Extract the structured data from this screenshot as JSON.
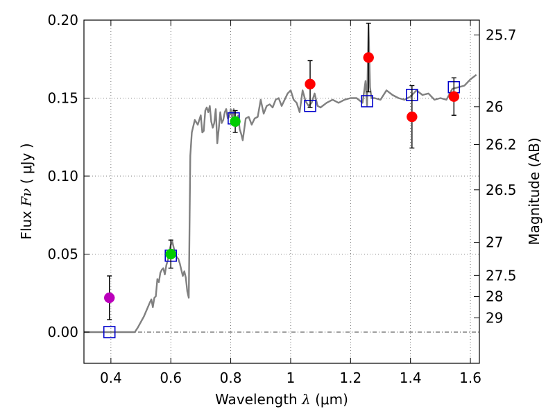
{
  "chart_data": {
    "type": "scatter",
    "xlabel": {
      "text": "Wavelength",
      "symbol": "λ",
      "unit": "(μm)"
    },
    "ylabel": {
      "text": "Flux",
      "symbol": "Fν",
      "unit": "( μJy )"
    },
    "y2label": "Magnitude (AB)",
    "xlim": [
      0.31,
      1.63
    ],
    "ylim": [
      -0.02,
      0.2
    ],
    "grid": true,
    "x_ticks": [
      {
        "value": 0.4,
        "label": "0.4"
      },
      {
        "value": 0.6,
        "label": "0.6"
      },
      {
        "value": 0.8,
        "label": "0.8"
      },
      {
        "value": 1.0,
        "label": "1"
      },
      {
        "value": 1.2,
        "label": "1.2"
      },
      {
        "value": 1.4,
        "label": "1.4"
      },
      {
        "value": 1.6,
        "label": "1.6"
      }
    ],
    "y_ticks": [
      {
        "value": 0.0,
        "label": "0.00"
      },
      {
        "value": 0.05,
        "label": "0.05"
      },
      {
        "value": 0.1,
        "label": "0.10"
      },
      {
        "value": 0.15,
        "label": "0.15"
      },
      {
        "value": 0.2,
        "label": "0.20"
      }
    ],
    "y2_ticks": [
      {
        "label": "25.7",
        "flux": 0.1905
      },
      {
        "label": "26",
        "flux": 0.1445
      },
      {
        "label": "26.2",
        "flux": 0.1202
      },
      {
        "label": "26.5",
        "flux": 0.0912
      },
      {
        "label": "27",
        "flux": 0.0575
      },
      {
        "label": "27.5",
        "flux": 0.0363
      },
      {
        "label": "28",
        "flux": 0.0229
      },
      {
        "label": "29",
        "flux": 0.0091
      }
    ],
    "series": [
      {
        "name": "model-spectrum",
        "kind": "line",
        "color": "#808080",
        "x": [
          0.31,
          0.48,
          0.49,
          0.51,
          0.53,
          0.535,
          0.54,
          0.545,
          0.55,
          0.555,
          0.56,
          0.565,
          0.57,
          0.575,
          0.58,
          0.585,
          0.59,
          0.595,
          0.6,
          0.605,
          0.61,
          0.615,
          0.62,
          0.625,
          0.63,
          0.635,
          0.64,
          0.645,
          0.65,
          0.655,
          0.66,
          0.665,
          0.67,
          0.68,
          0.69,
          0.7,
          0.705,
          0.71,
          0.715,
          0.72,
          0.725,
          0.73,
          0.735,
          0.74,
          0.745,
          0.75,
          0.755,
          0.76,
          0.765,
          0.77,
          0.775,
          0.78,
          0.785,
          0.79,
          0.795,
          0.8,
          0.805,
          0.81,
          0.815,
          0.82,
          0.825,
          0.83,
          0.835,
          0.84,
          0.85,
          0.86,
          0.87,
          0.88,
          0.89,
          0.9,
          0.91,
          0.92,
          0.93,
          0.94,
          0.95,
          0.96,
          0.97,
          0.98,
          0.99,
          1.0,
          1.01,
          1.02,
          1.03,
          1.04,
          1.05,
          1.06,
          1.07,
          1.08,
          1.09,
          1.1,
          1.12,
          1.14,
          1.16,
          1.18,
          1.2,
          1.22,
          1.24,
          1.25,
          1.255,
          1.26,
          1.265,
          1.27,
          1.28,
          1.3,
          1.32,
          1.34,
          1.36,
          1.38,
          1.4,
          1.42,
          1.44,
          1.46,
          1.48,
          1.5,
          1.52,
          1.54,
          1.56,
          1.58,
          1.6,
          1.62
        ],
        "y": [
          0.0,
          0.0,
          0.003,
          0.01,
          0.019,
          0.021,
          0.016,
          0.022,
          0.023,
          0.034,
          0.032,
          0.038,
          0.04,
          0.041,
          0.037,
          0.043,
          0.046,
          0.052,
          0.056,
          0.058,
          0.054,
          0.05,
          0.048,
          0.047,
          0.044,
          0.04,
          0.036,
          0.039,
          0.035,
          0.026,
          0.022,
          0.113,
          0.128,
          0.136,
          0.133,
          0.139,
          0.128,
          0.129,
          0.142,
          0.144,
          0.141,
          0.145,
          0.135,
          0.131,
          0.134,
          0.143,
          0.121,
          0.13,
          0.141,
          0.134,
          0.136,
          0.141,
          0.143,
          0.137,
          0.138,
          0.143,
          0.137,
          0.143,
          0.135,
          0.132,
          0.139,
          0.13,
          0.127,
          0.123,
          0.137,
          0.138,
          0.133,
          0.137,
          0.138,
          0.149,
          0.14,
          0.145,
          0.146,
          0.144,
          0.149,
          0.15,
          0.145,
          0.149,
          0.153,
          0.155,
          0.149,
          0.147,
          0.141,
          0.155,
          0.148,
          0.145,
          0.147,
          0.153,
          0.145,
          0.144,
          0.147,
          0.149,
          0.147,
          0.149,
          0.15,
          0.15,
          0.147,
          0.161,
          0.145,
          0.197,
          0.157,
          0.15,
          0.15,
          0.149,
          0.155,
          0.152,
          0.15,
          0.149,
          0.151,
          0.155,
          0.152,
          0.153,
          0.149,
          0.15,
          0.149,
          0.156,
          0.157,
          0.158,
          0.162,
          0.165
        ]
      },
      {
        "name": "model-photometry",
        "kind": "open-square",
        "color": "#0000cc",
        "x": [
          0.395,
          0.6,
          0.81,
          1.065,
          1.255,
          1.405,
          1.545
        ],
        "y": [
          0.0,
          0.049,
          0.137,
          0.145,
          0.148,
          0.152,
          0.157
        ]
      },
      {
        "name": "observed-violet",
        "kind": "point",
        "color": "#bb00bb",
        "x": [
          0.395
        ],
        "y": [
          0.022
        ],
        "yerr": [
          0.014
        ]
      },
      {
        "name": "observed-green",
        "kind": "point",
        "color": "#00cc00",
        "x": [
          0.6,
          0.815
        ],
        "y": [
          0.05,
          0.135
        ],
        "yerr": [
          0.009,
          0.007
        ]
      },
      {
        "name": "observed-red",
        "kind": "point",
        "color": "#ff0000",
        "x": [
          1.065,
          1.26,
          1.405,
          1.545
        ],
        "y": [
          0.159,
          0.176,
          0.138,
          0.151
        ],
        "yerr": [
          0.015,
          0.022,
          0.02,
          0.012
        ]
      }
    ]
  }
}
